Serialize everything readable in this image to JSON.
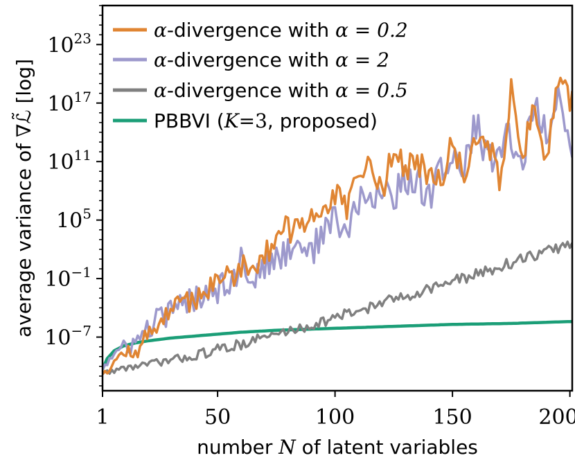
{
  "chart_data": {
    "type": "line",
    "title": "",
    "xlabel_prefix": "number ",
    "xlabel_var": "N",
    "xlabel_suffix": " of latent variables",
    "ylabel_prefix": "average variance of ",
    "ylabel_symbol": "∇ℒ̃",
    "ylabel_suffix": " [log]",
    "yscale": "log",
    "xlim": [
      1,
      201
    ],
    "ylim_exp": [
      -12.5,
      27
    ],
    "x_ticks": [
      {
        "value": 1,
        "label": "1"
      },
      {
        "value": 50,
        "label": "50"
      },
      {
        "value": 100,
        "label": "100"
      },
      {
        "value": 150,
        "label": "150"
      },
      {
        "value": 200,
        "label": "200"
      }
    ],
    "y_ticks": [
      {
        "exp": 23,
        "base": "10",
        "sup": "23"
      },
      {
        "exp": 17,
        "base": "10",
        "sup": "17"
      },
      {
        "exp": 11,
        "base": "10",
        "sup": "11"
      },
      {
        "exp": 5,
        "base": "10",
        "sup": "5"
      },
      {
        "exp": -1,
        "base": "10",
        "sup": "−1"
      },
      {
        "exp": -7,
        "base": "10",
        "sup": "−7"
      }
    ],
    "legend_position": "top-left",
    "series": [
      {
        "name": "α-divergence with α = 0.2",
        "legend_var": "α",
        "legend_mid": "-divergence with ",
        "legend_eq": "α = 0.2",
        "color": "#e08533",
        "x": [
          1,
          5,
          10,
          15,
          20,
          25,
          30,
          35,
          40,
          45,
          50,
          55,
          60,
          65,
          70,
          75,
          80,
          85,
          90,
          95,
          100,
          105,
          110,
          115,
          120,
          125,
          130,
          135,
          140,
          145,
          150,
          155,
          160,
          165,
          170,
          175,
          180,
          185,
          190,
          195,
          200
        ],
        "values_log10": [
          -10.5,
          -9.8,
          -8.5,
          -8.8,
          -6.8,
          -5.5,
          -4.2,
          -3.6,
          -3.0,
          -2.2,
          -1.5,
          -0.5,
          0.0,
          0.7,
          1.5,
          3.0,
          4.2,
          3.6,
          5.5,
          6.5,
          7.5,
          6.0,
          9.5,
          10.5,
          8.0,
          12.5,
          10.0,
          11.0,
          9.5,
          8.5,
          13.0,
          9.0,
          14.0,
          13.5,
          9.0,
          18.0,
          12.0,
          16.5,
          11.0,
          20.0,
          17.0
        ]
      },
      {
        "name": "α-divergence with α = 2",
        "legend_var": "α",
        "legend_mid": "-divergence with ",
        "legend_eq": "α = 2",
        "color": "#9d99cc",
        "x": [
          1,
          5,
          10,
          15,
          20,
          25,
          30,
          35,
          40,
          45,
          50,
          55,
          60,
          65,
          70,
          75,
          80,
          85,
          90,
          95,
          100,
          105,
          110,
          115,
          120,
          125,
          130,
          135,
          140,
          145,
          150,
          155,
          160,
          165,
          170,
          175,
          180,
          185,
          190,
          195,
          200
        ],
        "values_log10": [
          -10.0,
          -9.0,
          -8.2,
          -7.5,
          -6.3,
          -5.0,
          -4.5,
          -3.8,
          -3.0,
          -2.0,
          -1.8,
          -1.0,
          0.5,
          -0.5,
          0.0,
          1.0,
          2.0,
          3.0,
          1.5,
          4.0,
          5.0,
          3.5,
          7.0,
          6.5,
          8.5,
          7.5,
          9.0,
          9.5,
          7.0,
          10.5,
          11.5,
          10.0,
          15.0,
          11.0,
          12.5,
          13.5,
          11.0,
          17.0,
          14.0,
          18.0,
          12.0
        ]
      },
      {
        "name": "α-divergence with α = 0.5",
        "legend_var": "α",
        "legend_mid": "-divergence with ",
        "legend_eq": "α = 0.5",
        "color": "#808080",
        "x": [
          1,
          10,
          20,
          30,
          40,
          50,
          60,
          70,
          80,
          90,
          100,
          110,
          120,
          130,
          140,
          150,
          160,
          170,
          180,
          190,
          200
        ],
        "values_log10": [
          -10.7,
          -10.2,
          -9.8,
          -9.4,
          -8.9,
          -8.3,
          -7.7,
          -7.0,
          -6.4,
          -5.8,
          -5.0,
          -4.3,
          -3.5,
          -2.8,
          -2.0,
          -1.3,
          -0.6,
          0.2,
          1.0,
          1.8,
          2.5
        ]
      },
      {
        "name": "PBBVI (K=3, proposed)",
        "legend_plain": "PBBVI (",
        "legend_var": "K",
        "legend_eq": "=3",
        "legend_tail": ", proposed)",
        "color": "#1b9e77",
        "x": [
          1,
          3,
          6,
          10,
          15,
          20,
          30,
          40,
          50,
          60,
          75,
          100,
          125,
          150,
          175,
          201
        ],
        "values_log10": [
          -10.3,
          -9.2,
          -8.4,
          -7.9,
          -7.6,
          -7.4,
          -7.1,
          -6.9,
          -6.7,
          -6.5,
          -6.3,
          -6.1,
          -5.9,
          -5.7,
          -5.6,
          -5.4
        ]
      }
    ]
  }
}
